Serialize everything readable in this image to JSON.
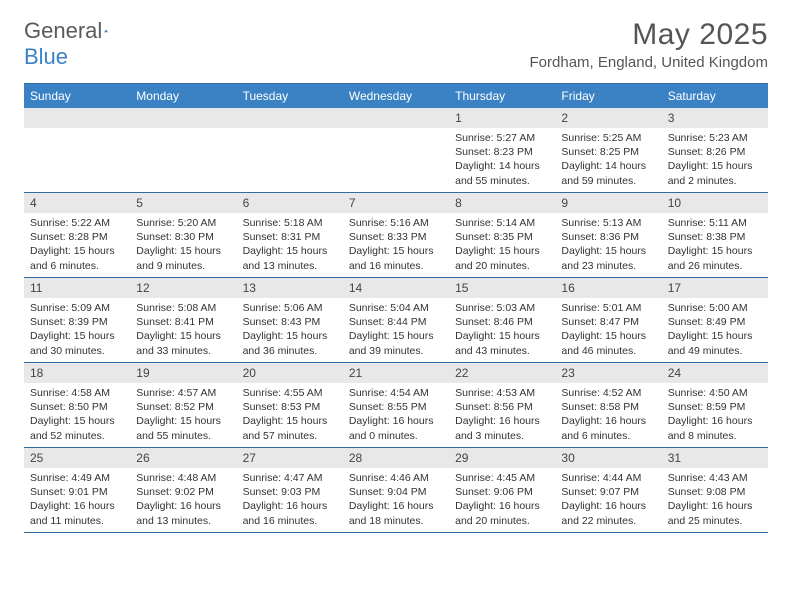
{
  "logo": {
    "part1": "General",
    "part2": "Blue"
  },
  "title": "May 2025",
  "location": "Fordham, England, United Kingdom",
  "dow": [
    "Sunday",
    "Monday",
    "Tuesday",
    "Wednesday",
    "Thursday",
    "Friday",
    "Saturday"
  ],
  "colors": {
    "header_bg": "#3b82c4",
    "border": "#2e6ca8",
    "daynum_bg": "#e8e8e8",
    "text": "#333333"
  },
  "weeks": [
    [
      {
        "n": "",
        "sr": "",
        "ss": "",
        "dl1": "",
        "dl2": ""
      },
      {
        "n": "",
        "sr": "",
        "ss": "",
        "dl1": "",
        "dl2": ""
      },
      {
        "n": "",
        "sr": "",
        "ss": "",
        "dl1": "",
        "dl2": ""
      },
      {
        "n": "",
        "sr": "",
        "ss": "",
        "dl1": "",
        "dl2": ""
      },
      {
        "n": "1",
        "sr": "Sunrise: 5:27 AM",
        "ss": "Sunset: 8:23 PM",
        "dl1": "Daylight: 14 hours",
        "dl2": "and 55 minutes."
      },
      {
        "n": "2",
        "sr": "Sunrise: 5:25 AM",
        "ss": "Sunset: 8:25 PM",
        "dl1": "Daylight: 14 hours",
        "dl2": "and 59 minutes."
      },
      {
        "n": "3",
        "sr": "Sunrise: 5:23 AM",
        "ss": "Sunset: 8:26 PM",
        "dl1": "Daylight: 15 hours",
        "dl2": "and 2 minutes."
      }
    ],
    [
      {
        "n": "4",
        "sr": "Sunrise: 5:22 AM",
        "ss": "Sunset: 8:28 PM",
        "dl1": "Daylight: 15 hours",
        "dl2": "and 6 minutes."
      },
      {
        "n": "5",
        "sr": "Sunrise: 5:20 AM",
        "ss": "Sunset: 8:30 PM",
        "dl1": "Daylight: 15 hours",
        "dl2": "and 9 minutes."
      },
      {
        "n": "6",
        "sr": "Sunrise: 5:18 AM",
        "ss": "Sunset: 8:31 PM",
        "dl1": "Daylight: 15 hours",
        "dl2": "and 13 minutes."
      },
      {
        "n": "7",
        "sr": "Sunrise: 5:16 AM",
        "ss": "Sunset: 8:33 PM",
        "dl1": "Daylight: 15 hours",
        "dl2": "and 16 minutes."
      },
      {
        "n": "8",
        "sr": "Sunrise: 5:14 AM",
        "ss": "Sunset: 8:35 PM",
        "dl1": "Daylight: 15 hours",
        "dl2": "and 20 minutes."
      },
      {
        "n": "9",
        "sr": "Sunrise: 5:13 AM",
        "ss": "Sunset: 8:36 PM",
        "dl1": "Daylight: 15 hours",
        "dl2": "and 23 minutes."
      },
      {
        "n": "10",
        "sr": "Sunrise: 5:11 AM",
        "ss": "Sunset: 8:38 PM",
        "dl1": "Daylight: 15 hours",
        "dl2": "and 26 minutes."
      }
    ],
    [
      {
        "n": "11",
        "sr": "Sunrise: 5:09 AM",
        "ss": "Sunset: 8:39 PM",
        "dl1": "Daylight: 15 hours",
        "dl2": "and 30 minutes."
      },
      {
        "n": "12",
        "sr": "Sunrise: 5:08 AM",
        "ss": "Sunset: 8:41 PM",
        "dl1": "Daylight: 15 hours",
        "dl2": "and 33 minutes."
      },
      {
        "n": "13",
        "sr": "Sunrise: 5:06 AM",
        "ss": "Sunset: 8:43 PM",
        "dl1": "Daylight: 15 hours",
        "dl2": "and 36 minutes."
      },
      {
        "n": "14",
        "sr": "Sunrise: 5:04 AM",
        "ss": "Sunset: 8:44 PM",
        "dl1": "Daylight: 15 hours",
        "dl2": "and 39 minutes."
      },
      {
        "n": "15",
        "sr": "Sunrise: 5:03 AM",
        "ss": "Sunset: 8:46 PM",
        "dl1": "Daylight: 15 hours",
        "dl2": "and 43 minutes."
      },
      {
        "n": "16",
        "sr": "Sunrise: 5:01 AM",
        "ss": "Sunset: 8:47 PM",
        "dl1": "Daylight: 15 hours",
        "dl2": "and 46 minutes."
      },
      {
        "n": "17",
        "sr": "Sunrise: 5:00 AM",
        "ss": "Sunset: 8:49 PM",
        "dl1": "Daylight: 15 hours",
        "dl2": "and 49 minutes."
      }
    ],
    [
      {
        "n": "18",
        "sr": "Sunrise: 4:58 AM",
        "ss": "Sunset: 8:50 PM",
        "dl1": "Daylight: 15 hours",
        "dl2": "and 52 minutes."
      },
      {
        "n": "19",
        "sr": "Sunrise: 4:57 AM",
        "ss": "Sunset: 8:52 PM",
        "dl1": "Daylight: 15 hours",
        "dl2": "and 55 minutes."
      },
      {
        "n": "20",
        "sr": "Sunrise: 4:55 AM",
        "ss": "Sunset: 8:53 PM",
        "dl1": "Daylight: 15 hours",
        "dl2": "and 57 minutes."
      },
      {
        "n": "21",
        "sr": "Sunrise: 4:54 AM",
        "ss": "Sunset: 8:55 PM",
        "dl1": "Daylight: 16 hours",
        "dl2": "and 0 minutes."
      },
      {
        "n": "22",
        "sr": "Sunrise: 4:53 AM",
        "ss": "Sunset: 8:56 PM",
        "dl1": "Daylight: 16 hours",
        "dl2": "and 3 minutes."
      },
      {
        "n": "23",
        "sr": "Sunrise: 4:52 AM",
        "ss": "Sunset: 8:58 PM",
        "dl1": "Daylight: 16 hours",
        "dl2": "and 6 minutes."
      },
      {
        "n": "24",
        "sr": "Sunrise: 4:50 AM",
        "ss": "Sunset: 8:59 PM",
        "dl1": "Daylight: 16 hours",
        "dl2": "and 8 minutes."
      }
    ],
    [
      {
        "n": "25",
        "sr": "Sunrise: 4:49 AM",
        "ss": "Sunset: 9:01 PM",
        "dl1": "Daylight: 16 hours",
        "dl2": "and 11 minutes."
      },
      {
        "n": "26",
        "sr": "Sunrise: 4:48 AM",
        "ss": "Sunset: 9:02 PM",
        "dl1": "Daylight: 16 hours",
        "dl2": "and 13 minutes."
      },
      {
        "n": "27",
        "sr": "Sunrise: 4:47 AM",
        "ss": "Sunset: 9:03 PM",
        "dl1": "Daylight: 16 hours",
        "dl2": "and 16 minutes."
      },
      {
        "n": "28",
        "sr": "Sunrise: 4:46 AM",
        "ss": "Sunset: 9:04 PM",
        "dl1": "Daylight: 16 hours",
        "dl2": "and 18 minutes."
      },
      {
        "n": "29",
        "sr": "Sunrise: 4:45 AM",
        "ss": "Sunset: 9:06 PM",
        "dl1": "Daylight: 16 hours",
        "dl2": "and 20 minutes."
      },
      {
        "n": "30",
        "sr": "Sunrise: 4:44 AM",
        "ss": "Sunset: 9:07 PM",
        "dl1": "Daylight: 16 hours",
        "dl2": "and 22 minutes."
      },
      {
        "n": "31",
        "sr": "Sunrise: 4:43 AM",
        "ss": "Sunset: 9:08 PM",
        "dl1": "Daylight: 16 hours",
        "dl2": "and 25 minutes."
      }
    ]
  ]
}
